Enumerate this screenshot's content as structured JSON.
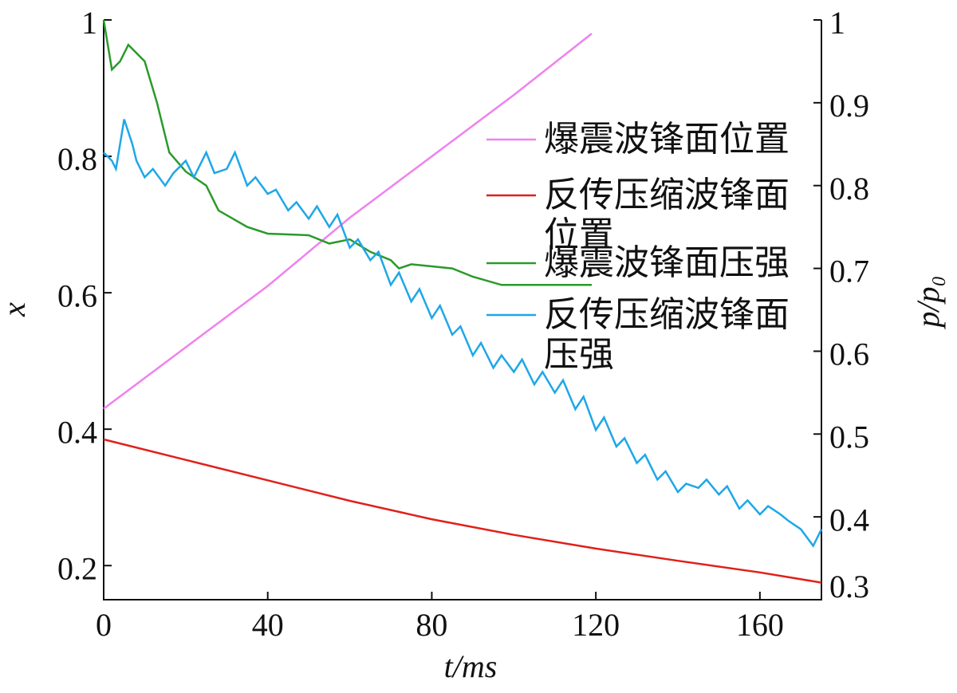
{
  "chart_data": {
    "type": "line",
    "x_label": "t/ms",
    "y_label": "x",
    "y2_label": "p/p₀",
    "xlim": [
      0,
      175
    ],
    "xticks": [
      0,
      40,
      80,
      120,
      160
    ],
    "ylim": [
      0.15,
      1.0
    ],
    "yticks": [
      0.2,
      0.4,
      0.6,
      0.8,
      1.0
    ],
    "y2lim": [
      0.3,
      1.0
    ],
    "y2ticks": [
      0.3,
      0.4,
      0.5,
      0.6,
      0.7,
      0.8,
      0.9,
      1.0
    ],
    "legend": "upper right",
    "series": [
      {
        "name": "爆震波锋面位置",
        "color": "#ee82ee",
        "x": [
          0,
          20,
          40,
          60,
          80,
          100,
          119
        ],
        "values": [
          0.43,
          0.52,
          0.61,
          0.71,
          0.8,
          0.89,
          0.98
        ]
      },
      {
        "name": "反传压缩波锋面位置",
        "color": "#e0201a",
        "x": [
          0,
          20,
          40,
          60,
          80,
          100,
          120,
          140,
          160,
          175
        ],
        "values": [
          0.385,
          0.355,
          0.325,
          0.295,
          0.268,
          0.245,
          0.225,
          0.207,
          0.19,
          0.175
        ]
      },
      {
        "name": "爆震波锋面压强",
        "color": "#2a9a2a",
        "axis": "y2",
        "x": [
          0,
          2,
          4,
          6,
          8,
          10,
          13,
          16,
          20,
          25,
          28,
          35,
          40,
          50,
          55,
          60,
          65,
          70,
          72,
          75,
          85,
          90,
          97,
          110,
          119
        ],
        "values": [
          1.0,
          0.94,
          0.95,
          0.97,
          0.96,
          0.95,
          0.9,
          0.84,
          0.817,
          0.8,
          0.77,
          0.75,
          0.742,
          0.74,
          0.73,
          0.735,
          0.72,
          0.71,
          0.7,
          0.705,
          0.7,
          0.69,
          0.68,
          0.68,
          0.68
        ]
      },
      {
        "name": "反传压缩波锋面压强",
        "color": "#1ea7e8",
        "axis": "y2",
        "x": [
          0,
          2,
          3,
          5,
          7,
          8,
          10,
          12,
          15,
          17,
          20,
          22,
          25,
          27,
          30,
          32,
          35,
          37,
          40,
          42,
          45,
          47,
          50,
          52,
          55,
          57,
          60,
          62,
          65,
          67,
          70,
          72,
          75,
          77,
          80,
          82,
          85,
          87,
          90,
          92,
          95,
          97,
          100,
          102,
          105,
          107,
          110,
          112,
          115,
          117,
          120,
          122,
          125,
          127,
          130,
          132,
          135,
          137,
          140,
          142,
          145,
          147,
          150,
          152,
          155,
          157,
          160,
          162,
          165,
          167,
          170,
          173,
          175
        ],
        "values": [
          0.84,
          0.83,
          0.82,
          0.88,
          0.85,
          0.83,
          0.81,
          0.82,
          0.8,
          0.815,
          0.83,
          0.81,
          0.84,
          0.815,
          0.82,
          0.84,
          0.8,
          0.81,
          0.79,
          0.795,
          0.77,
          0.78,
          0.76,
          0.775,
          0.75,
          0.765,
          0.725,
          0.735,
          0.71,
          0.72,
          0.68,
          0.695,
          0.66,
          0.675,
          0.64,
          0.655,
          0.62,
          0.63,
          0.595,
          0.61,
          0.58,
          0.595,
          0.575,
          0.59,
          0.56,
          0.575,
          0.55,
          0.565,
          0.53,
          0.545,
          0.505,
          0.52,
          0.485,
          0.495,
          0.465,
          0.475,
          0.445,
          0.455,
          0.43,
          0.44,
          0.435,
          0.445,
          0.427,
          0.437,
          0.41,
          0.42,
          0.403,
          0.413,
          0.403,
          0.395,
          0.385,
          0.365,
          0.385
        ]
      }
    ]
  }
}
